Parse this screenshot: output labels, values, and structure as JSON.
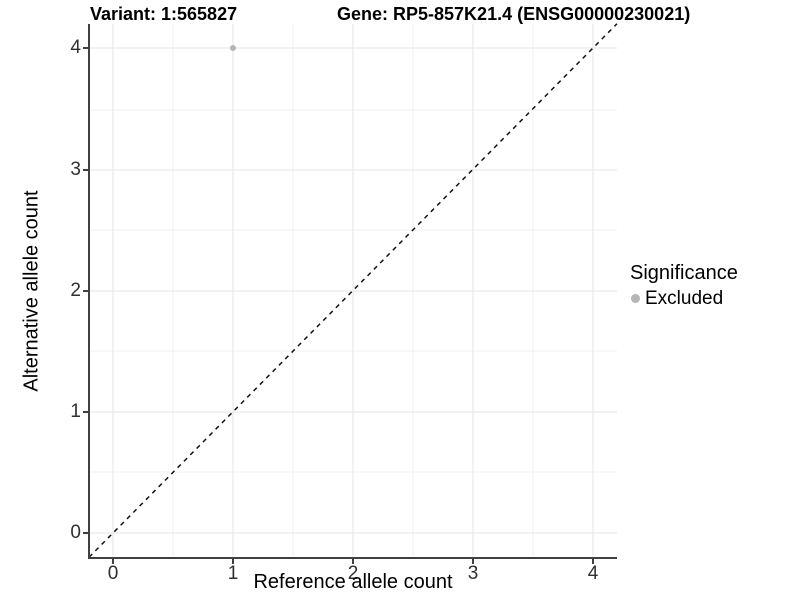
{
  "figure": {
    "background": "#ffffff"
  },
  "chart_data": {
    "type": "scatter",
    "title_left": "Variant: 1:565827",
    "title_right": "Gene: RP5-857K21.4 (ENSG00000230021)",
    "xlabel": "Reference allele count",
    "ylabel": "Alternative allele count",
    "xlim": [
      -0.2,
      4.2
    ],
    "ylim": [
      -0.2,
      4.2
    ],
    "xticks": [
      0,
      1,
      2,
      3,
      4
    ],
    "yticks": [
      0,
      1,
      2,
      3,
      4
    ],
    "xtick_labels": [
      "0",
      "1",
      "2",
      "3",
      "4"
    ],
    "ytick_labels": [
      "0",
      "1",
      "2",
      "3",
      "4"
    ],
    "grid": "major and minor, light grey on white",
    "points": [
      {
        "x": 1,
        "y": 4,
        "series": "Excluded"
      }
    ],
    "reference_line": {
      "slope": 1,
      "intercept": 0,
      "style": "dashed",
      "color": "#111111"
    },
    "legend": {
      "title": "Significance",
      "position": "right",
      "items": [
        {
          "label": "Excluded",
          "marker": "circle",
          "color": "#b5b5b5"
        }
      ]
    },
    "colors": {
      "point": "#b5b5b5",
      "axis": "#404040",
      "grid_major": "#e6e6e6",
      "grid_minor": "#f2f2f2",
      "tick_text": "#303030"
    }
  }
}
